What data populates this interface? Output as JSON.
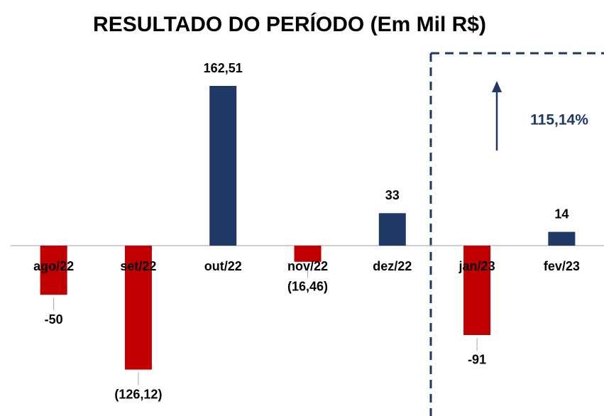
{
  "chart_data": {
    "type": "bar",
    "title": "RESULTADO DO PERÍODO (Em Mil R$)",
    "categories": [
      "ago/22",
      "set/22",
      "out/22",
      "nov/22",
      "dez/22",
      "jan/23",
      "fev/23"
    ],
    "values": [
      -50,
      -126.12,
      162.51,
      -16.46,
      33,
      -91,
      14
    ],
    "value_labels": [
      "-50",
      "(126,12)",
      "162,51",
      "(16,46)",
      "33",
      "-91",
      "14"
    ],
    "positive_color": "#203864",
    "negative_color": "#c00000",
    "annotation": "115,14%"
  }
}
